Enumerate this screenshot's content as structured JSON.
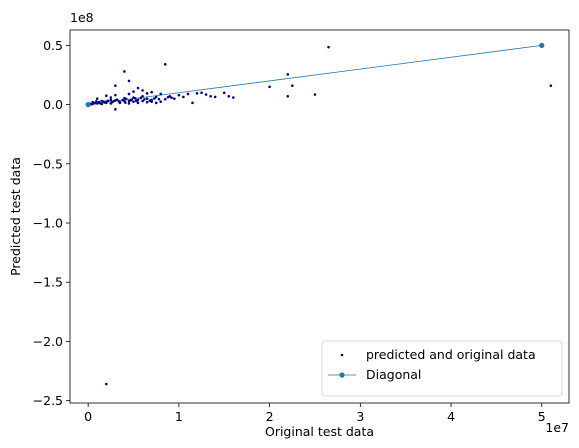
{
  "chart_data": {
    "type": "scatter",
    "xlabel": "Original test data",
    "ylabel": "Predicted test data",
    "x_offset_text": "1e7",
    "y_offset_text": "1e8",
    "xlim": [
      -2000000,
      53000000
    ],
    "ylim": [
      -252000000,
      63000000
    ],
    "x_ticks": [
      {
        "value": 0,
        "label": "0"
      },
      {
        "value": 10000000,
        "label": "1"
      },
      {
        "value": 20000000,
        "label": "2"
      },
      {
        "value": 30000000,
        "label": "3"
      },
      {
        "value": 40000000,
        "label": "4"
      },
      {
        "value": 50000000,
        "label": "5"
      }
    ],
    "y_ticks": [
      {
        "value": 50000000,
        "label": "0.5"
      },
      {
        "value": 0,
        "label": "0.0"
      },
      {
        "value": -50000000,
        "label": "−0.5"
      },
      {
        "value": -100000000,
        "label": "−1.0"
      },
      {
        "value": -150000000,
        "label": "−1.5"
      },
      {
        "value": -200000000,
        "label": "−2.0"
      },
      {
        "value": -250000000,
        "label": "−2.5"
      }
    ],
    "legend_position": "lower right",
    "series": [
      {
        "name": "predicted and original data",
        "kind": "scatter",
        "color": "#000080",
        "points": [
          [
            4000000,
            28000000
          ],
          [
            8500000,
            34000000
          ],
          [
            26500000,
            48500000
          ],
          [
            51000000,
            16000000
          ],
          [
            22000000,
            25500000
          ],
          [
            22500000,
            16000000
          ],
          [
            20000000,
            15000000
          ],
          [
            25000000,
            8500000
          ],
          [
            22000000,
            7000000
          ],
          [
            2000000,
            -236000000
          ],
          [
            3000000,
            16000000
          ],
          [
            4500000,
            20000000
          ],
          [
            5500000,
            14000000
          ],
          [
            6000000,
            12000000
          ],
          [
            7000000,
            10500000
          ],
          [
            8000000,
            9000000
          ],
          [
            9000000,
            7000000
          ],
          [
            10000000,
            8000000
          ],
          [
            11000000,
            9000000
          ],
          [
            12000000,
            9500000
          ],
          [
            12500000,
            10000000
          ],
          [
            13000000,
            8500000
          ],
          [
            13500000,
            7000000
          ],
          [
            14000000,
            6500000
          ],
          [
            15000000,
            10000000
          ],
          [
            15500000,
            7000000
          ],
          [
            16000000,
            6000000
          ],
          [
            11500000,
            1500000
          ],
          [
            8000000,
            2500000
          ],
          [
            9500000,
            5000000
          ],
          [
            3000000,
            -4000000
          ],
          [
            1000000,
            5000000
          ],
          [
            500000,
            2000000
          ],
          [
            1500000,
            3000000
          ],
          [
            2000000,
            1500000
          ],
          [
            2500000,
            4000000
          ],
          [
            3500000,
            2000000
          ],
          [
            4000000,
            5500000
          ],
          [
            4500000,
            3000000
          ],
          [
            5000000,
            6000000
          ],
          [
            5500000,
            4000000
          ],
          [
            6000000,
            7000000
          ],
          [
            6500000,
            5000000
          ],
          [
            7000000,
            4000000
          ],
          [
            7500000,
            6500000
          ],
          [
            1000000,
            1000000
          ],
          [
            1500000,
            500000
          ],
          [
            2000000,
            2500000
          ],
          [
            2500000,
            1000000
          ],
          [
            3000000,
            3500000
          ],
          [
            3500000,
            1500000
          ],
          [
            4000000,
            3000000
          ],
          [
            4500000,
            1000000
          ],
          [
            5000000,
            2500000
          ],
          [
            5500000,
            1500000
          ],
          [
            6000000,
            3000000
          ],
          [
            6500000,
            2000000
          ],
          [
            7000000,
            2500000
          ],
          [
            7500000,
            1500000
          ],
          [
            8500000,
            4500000
          ],
          [
            3000000,
            8000000
          ],
          [
            2500000,
            6000000
          ],
          [
            2000000,
            7500000
          ],
          [
            4500000,
            9000000
          ],
          [
            5000000,
            11000000
          ],
          [
            6500000,
            9500000
          ],
          [
            500000,
            500000
          ],
          [
            800000,
            1200000
          ],
          [
            1200000,
            2200000
          ],
          [
            1800000,
            1800000
          ],
          [
            2200000,
            3200000
          ],
          [
            2800000,
            2800000
          ],
          [
            3200000,
            4200000
          ],
          [
            3800000,
            3800000
          ],
          [
            4200000,
            4800000
          ],
          [
            4800000,
            4200000
          ],
          [
            5200000,
            5200000
          ],
          [
            5800000,
            5600000
          ],
          [
            200000,
            800000
          ],
          [
            300000,
            300000
          ],
          [
            600000,
            1500000
          ],
          [
            900000,
            2800000
          ],
          [
            1300000,
            1200000
          ],
          [
            1700000,
            2600000
          ],
          [
            2600000,
            1900000
          ],
          [
            3400000,
            2600000
          ],
          [
            4100000,
            1700000
          ],
          [
            4700000,
            3600000
          ],
          [
            5300000,
            3100000
          ],
          [
            6200000,
            4400000
          ],
          [
            6800000,
            3300000
          ],
          [
            7300000,
            5200000
          ],
          [
            7800000,
            4600000
          ],
          [
            9200000,
            5800000
          ],
          [
            10500000,
            6500000
          ],
          [
            8800000,
            6200000
          ]
        ]
      },
      {
        "name": "Diagonal",
        "kind": "line",
        "color": "#1f77b4",
        "points": [
          [
            0,
            0
          ],
          [
            50000000,
            50000000
          ]
        ]
      }
    ]
  }
}
